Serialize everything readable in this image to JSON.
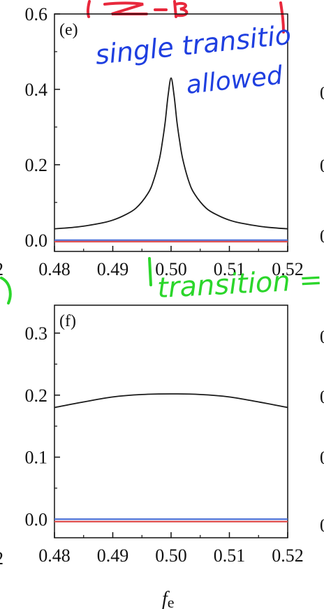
{
  "chart_data": [
    {
      "type": "line",
      "panel_label": "(e)",
      "xlim": [
        0.48,
        0.52
      ],
      "ylim": [
        -0.03,
        0.6
      ],
      "x_ticks": [
        "0.48",
        "0.49",
        "0.50",
        "0.51",
        "0.52"
      ],
      "y_ticks": [
        "0.0",
        "0.2",
        "0.4",
        "0.6"
      ],
      "edge_fragments": {
        "left": "2",
        "right": [
          "0",
          "0",
          "0"
        ]
      },
      "series": [
        {
          "color": "#1a1a1a",
          "x": [
            0.48,
            0.484,
            0.488,
            0.49,
            0.492,
            0.494,
            0.496,
            0.497,
            0.498,
            0.4985,
            0.499,
            0.4995,
            0.5,
            0.5005,
            0.501,
            0.5015,
            0.502,
            0.503,
            0.504,
            0.506,
            0.508,
            0.51,
            0.512,
            0.516,
            0.52
          ],
          "y": [
            0.03,
            0.035,
            0.045,
            0.053,
            0.066,
            0.085,
            0.123,
            0.158,
            0.215,
            0.26,
            0.315,
            0.385,
            0.43,
            0.385,
            0.315,
            0.26,
            0.215,
            0.158,
            0.123,
            0.085,
            0.066,
            0.053,
            0.045,
            0.035,
            0.03
          ]
        },
        {
          "color": "#4a6fd6",
          "x": [
            0.48,
            0.52
          ],
          "y": [
            0.0,
            0.0
          ]
        },
        {
          "color": "#e05050",
          "x": [
            0.48,
            0.52
          ],
          "y": [
            -0.004,
            -0.004
          ]
        }
      ]
    },
    {
      "type": "line",
      "panel_label": "(f)",
      "xlim": [
        0.48,
        0.52
      ],
      "ylim": [
        -0.03,
        0.345
      ],
      "x_ticks": [
        "0.48",
        "0.49",
        "0.50",
        "0.51",
        "0.52"
      ],
      "y_ticks": [
        "0.0",
        "0.1",
        "0.2",
        "0.3"
      ],
      "xlabel_main": "f",
      "xlabel_sub": "e",
      "edge_fragments": {
        "left": "2",
        "right": [
          "0",
          "0",
          "0",
          "0"
        ]
      },
      "series": [
        {
          "color": "#1a1a1a",
          "x": [
            0.48,
            0.485,
            0.49,
            0.495,
            0.5,
            0.505,
            0.51,
            0.515,
            0.52
          ],
          "y": [
            0.18,
            0.189,
            0.197,
            0.201,
            0.202,
            0.201,
            0.197,
            0.189,
            0.18
          ]
        },
        {
          "color": "#4a6fd6",
          "x": [
            0.48,
            0.52
          ],
          "y": [
            0.0,
            0.0
          ]
        },
        {
          "color": "#e05050",
          "x": [
            0.48,
            0.52
          ],
          "y": [
            -0.004,
            -0.004
          ]
        }
      ]
    }
  ],
  "annotations": {
    "blue_line1": "single transitio",
    "blue_line2": "allowed",
    "green_text": "transition = ba"
  },
  "colors": {
    "blue_ink": "#1f3fe0",
    "green_ink": "#2bd62b",
    "red_ink": "#e8283c"
  }
}
